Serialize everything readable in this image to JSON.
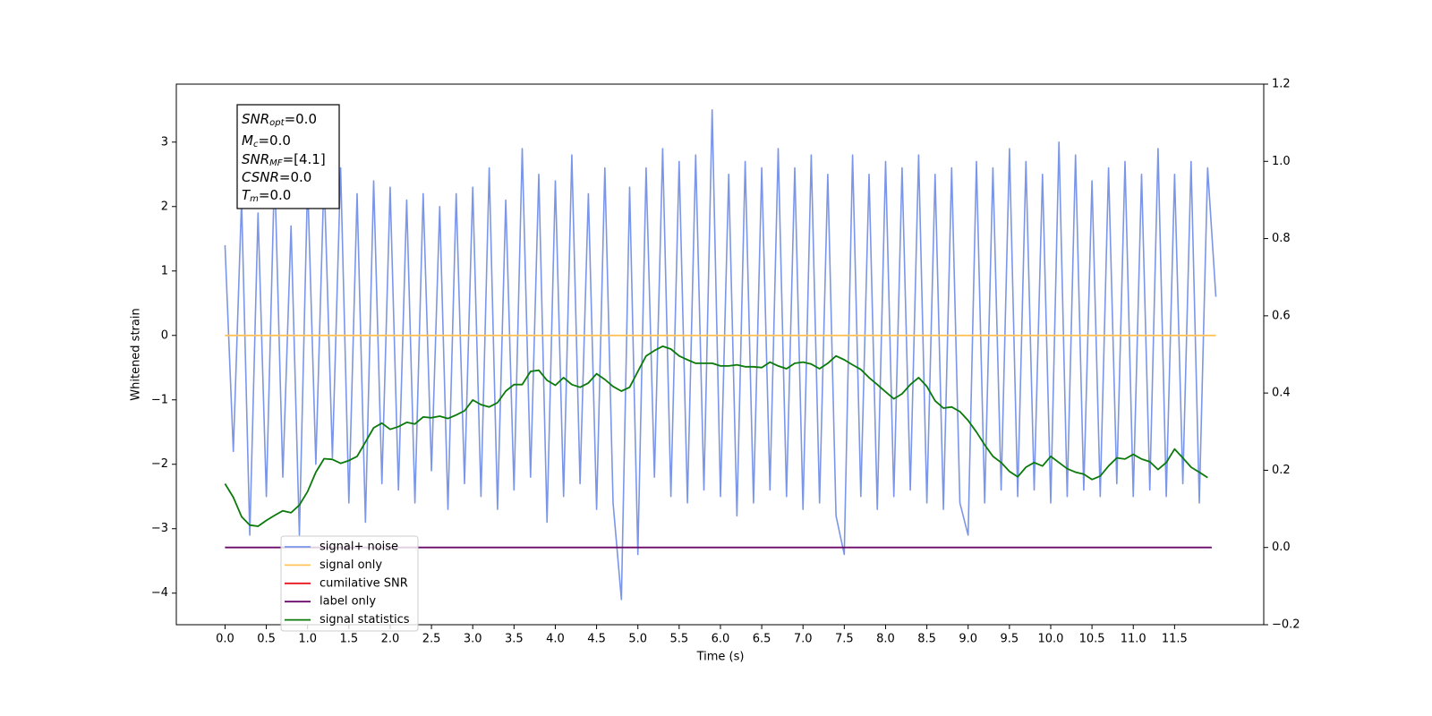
{
  "chart_data": {
    "type": "line",
    "xlabel": "Time (s)",
    "ylabel": "Whitened strain",
    "xlim": [
      -0.59,
      12.58
    ],
    "ylim": [
      -4.49,
      3.9
    ],
    "y2lim": [
      -0.2,
      1.2
    ],
    "xticks": [
      {
        "value": 0,
        "label": "0.0"
      },
      0.5,
      {
        "value": 1,
        "label": "1.0"
      },
      1.5,
      {
        "value": 2,
        "label": "2.0"
      },
      2.5,
      {
        "value": 3,
        "label": "3.0"
      },
      3.5,
      {
        "value": 4,
        "label": "4.0"
      },
      4.5,
      {
        "value": 5,
        "label": "5.0"
      },
      5.5,
      {
        "value": 6,
        "label": "6.0"
      },
      6.5,
      {
        "value": 7,
        "label": "7.0"
      },
      7.5,
      {
        "value": 8,
        "label": "8.0"
      },
      8.5,
      {
        "value": 9,
        "label": "9.0"
      },
      9.5,
      {
        "value": 10,
        "label": "10.0"
      },
      10.5,
      {
        "value": 11,
        "label": "11.0"
      },
      11.5
    ],
    "yticks": [
      {
        "value": -4,
        "label": "−4"
      },
      {
        "value": -3,
        "label": "−3"
      },
      {
        "value": -2,
        "label": "−2"
      },
      {
        "value": -1,
        "label": "−1"
      },
      0,
      1,
      2,
      3
    ],
    "y2ticks": [
      {
        "value": -0.2,
        "label": "−0.2"
      },
      {
        "value": 0,
        "label": "0.0"
      },
      0.2,
      0.4,
      0.6,
      0.8,
      {
        "value": 1,
        "label": "1.0"
      },
      1.2
    ],
    "legend": "lower left",
    "annotations": [
      {
        "base": "SNR",
        "sub": "opt",
        "rest": "=0.0"
      },
      {
        "base": "M",
        "sub": "c",
        "rest": "=0.0"
      },
      {
        "base": "SNR",
        "sub": "MF",
        "rest": "=[4.1]"
      },
      {
        "base": "CSNR",
        "sub": null,
        "rest": "=0.0"
      },
      {
        "base": "T",
        "sub": "m",
        "rest": "=0.0"
      }
    ],
    "series": [
      {
        "name": "signal+ noise",
        "color": "#7b96e8",
        "axis": "y",
        "x": [
          0,
          0.1,
          0.2,
          0.3,
          0.4,
          0.5,
          0.6,
          0.7,
          0.8,
          0.9,
          1,
          1.1,
          1.2,
          1.3,
          1.4,
          1.5,
          1.6,
          1.7,
          1.8,
          1.9,
          2,
          2.1,
          2.2,
          2.3,
          2.4,
          2.5,
          2.6,
          2.7,
          2.8,
          2.9,
          3,
          3.1,
          3.2,
          3.3,
          3.4,
          3.5,
          3.6,
          3.7,
          3.8,
          3.9,
          4,
          4.1,
          4.2,
          4.3,
          4.4,
          4.5,
          4.6,
          4.7,
          4.8,
          4.9,
          5,
          5.1,
          5.2,
          5.3,
          5.4,
          5.5,
          5.6,
          5.7,
          5.8,
          5.9,
          6,
          6.1,
          6.2,
          6.3,
          6.4,
          6.5,
          6.6,
          6.7,
          6.8,
          6.9,
          7,
          7.1,
          7.2,
          7.3,
          7.4,
          7.5,
          7.6,
          7.7,
          7.8,
          7.9,
          8,
          8.1,
          8.2,
          8.3,
          8.4,
          8.5,
          8.6,
          8.7,
          8.8,
          8.9,
          9,
          9.1,
          9.2,
          9.3,
          9.4,
          9.5,
          9.6,
          9.7,
          9.8,
          9.9,
          10,
          10.1,
          10.2,
          10.3,
          10.4,
          10.5,
          10.6,
          10.7,
          10.8,
          10.9,
          11,
          11.1,
          11.2,
          11.3,
          11.4,
          11.5,
          11.6,
          11.7,
          11.8,
          11.9,
          12
        ],
        "values": [
          1.4,
          -1.8,
          2.1,
          -3.1,
          1.9,
          -2.5,
          2.6,
          -2.2,
          1.7,
          -3.1,
          2.4,
          -2.0,
          2.5,
          -1.9,
          2.6,
          -2.6,
          2.2,
          -2.9,
          2.4,
          -2.3,
          2.3,
          -2.4,
          2.1,
          -2.6,
          2.2,
          -2.1,
          2.0,
          -2.7,
          2.2,
          -2.3,
          2.3,
          -2.5,
          2.6,
          -2.7,
          2.1,
          -2.4,
          2.9,
          -2.2,
          2.5,
          -2.9,
          2.4,
          -2.5,
          2.8,
          -2.3,
          2.2,
          -2.7,
          2.6,
          -2.6,
          -4.1,
          2.3,
          -3.4,
          2.6,
          -2.2,
          2.9,
          -2.5,
          2.7,
          -2.6,
          2.8,
          -2.4,
          3.5,
          -2.5,
          2.5,
          -2.8,
          2.7,
          -2.6,
          2.6,
          -2.4,
          2.9,
          -2.5,
          2.6,
          -2.7,
          2.8,
          -2.6,
          2.5,
          -2.8,
          -3.4,
          2.8,
          -2.5,
          2.5,
          -2.7,
          2.7,
          -2.5,
          2.6,
          -2.4,
          2.8,
          -2.6,
          2.5,
          -2.7,
          2.6,
          -2.6,
          -3.1,
          2.7,
          -2.6,
          2.6,
          -2.4,
          2.9,
          -2.5,
          2.7,
          -2.4,
          2.5,
          -2.6,
          3.0,
          -2.5,
          2.8,
          -2.4,
          2.4,
          -2.5,
          2.6,
          -2.3,
          2.7,
          -2.5,
          2.5,
          -2.4,
          2.9,
          -2.5,
          2.5,
          -2.3,
          2.7,
          -2.6,
          2.6,
          0.6
        ]
      },
      {
        "name": "signal only",
        "color": "#ffc35a",
        "axis": "y",
        "x": [
          0,
          12
        ],
        "values": [
          0,
          0
        ]
      },
      {
        "name": "cumilative SNR",
        "color": "#e8141e",
        "axis": "y2",
        "x": [],
        "values": []
      },
      {
        "name": "label only",
        "color": "#6a0a6a",
        "axis": "y2",
        "x": [
          0,
          11.95
        ],
        "values": [
          0,
          0
        ]
      },
      {
        "name": "signal statistics",
        "color": "#0a7a0a",
        "axis": "y2",
        "x": [
          0,
          0.1,
          0.2,
          0.3,
          0.4,
          0.5,
          0.6,
          0.7,
          0.8,
          0.9,
          1,
          1.1,
          1.2,
          1.3,
          1.4,
          1.5,
          1.6,
          1.7,
          1.8,
          1.9,
          2,
          2.1,
          2.2,
          2.3,
          2.4,
          2.5,
          2.6,
          2.7,
          2.8,
          2.9,
          3,
          3.1,
          3.2,
          3.3,
          3.4,
          3.5,
          3.6,
          3.7,
          3.8,
          3.9,
          4,
          4.1,
          4.2,
          4.3,
          4.4,
          4.5,
          4.6,
          4.7,
          4.8,
          4.9,
          5,
          5.1,
          5.2,
          5.3,
          5.4,
          5.5,
          5.6,
          5.7,
          5.8,
          5.9,
          6,
          6.1,
          6.2,
          6.3,
          6.4,
          6.5,
          6.6,
          6.7,
          6.8,
          6.9,
          7,
          7.1,
          7.2,
          7.3,
          7.4,
          7.5,
          7.6,
          7.7,
          7.8,
          7.9,
          8,
          8.1,
          8.2,
          8.3,
          8.4,
          8.5,
          8.6,
          8.7,
          8.8,
          8.9,
          9,
          9.1,
          9.2,
          9.3,
          9.4,
          9.5,
          9.6,
          9.7,
          9.8,
          9.9,
          10,
          10.1,
          10.2,
          10.3,
          10.4,
          10.5,
          10.6,
          10.7,
          10.8,
          10.9,
          11,
          11.1,
          11.2,
          11.3,
          11.4,
          11.5,
          11.6,
          11.7,
          11.8,
          11.9
        ],
        "values": [
          0.165,
          0.13,
          0.08,
          0.058,
          0.055,
          0.07,
          0.083,
          0.095,
          0.09,
          0.11,
          0.145,
          0.195,
          0.23,
          0.228,
          0.218,
          0.225,
          0.236,
          0.273,
          0.31,
          0.322,
          0.306,
          0.313,
          0.324,
          0.32,
          0.338,
          0.336,
          0.34,
          0.334,
          0.343,
          0.354,
          0.382,
          0.37,
          0.364,
          0.375,
          0.405,
          0.422,
          0.422,
          0.456,
          0.459,
          0.433,
          0.42,
          0.44,
          0.422,
          0.415,
          0.426,
          0.45,
          0.435,
          0.417,
          0.405,
          0.415,
          0.456,
          0.496,
          0.51,
          0.521,
          0.514,
          0.496,
          0.486,
          0.477,
          0.477,
          0.477,
          0.47,
          0.47,
          0.473,
          0.468,
          0.468,
          0.466,
          0.48,
          0.47,
          0.463,
          0.477,
          0.48,
          0.475,
          0.463,
          0.477,
          0.496,
          0.486,
          0.473,
          0.461,
          0.44,
          0.422,
          0.403,
          0.385,
          0.398,
          0.422,
          0.44,
          0.417,
          0.38,
          0.361,
          0.364,
          0.352,
          0.329,
          0.299,
          0.266,
          0.236,
          0.22,
          0.197,
          0.183,
          0.208,
          0.22,
          0.211,
          0.236,
          0.22,
          0.204,
          0.195,
          0.19,
          0.176,
          0.185,
          0.211,
          0.232,
          0.229,
          0.241,
          0.229,
          0.222,
          0.202,
          0.22,
          0.255,
          0.232,
          0.208,
          0.195,
          0.181
        ]
      }
    ]
  }
}
